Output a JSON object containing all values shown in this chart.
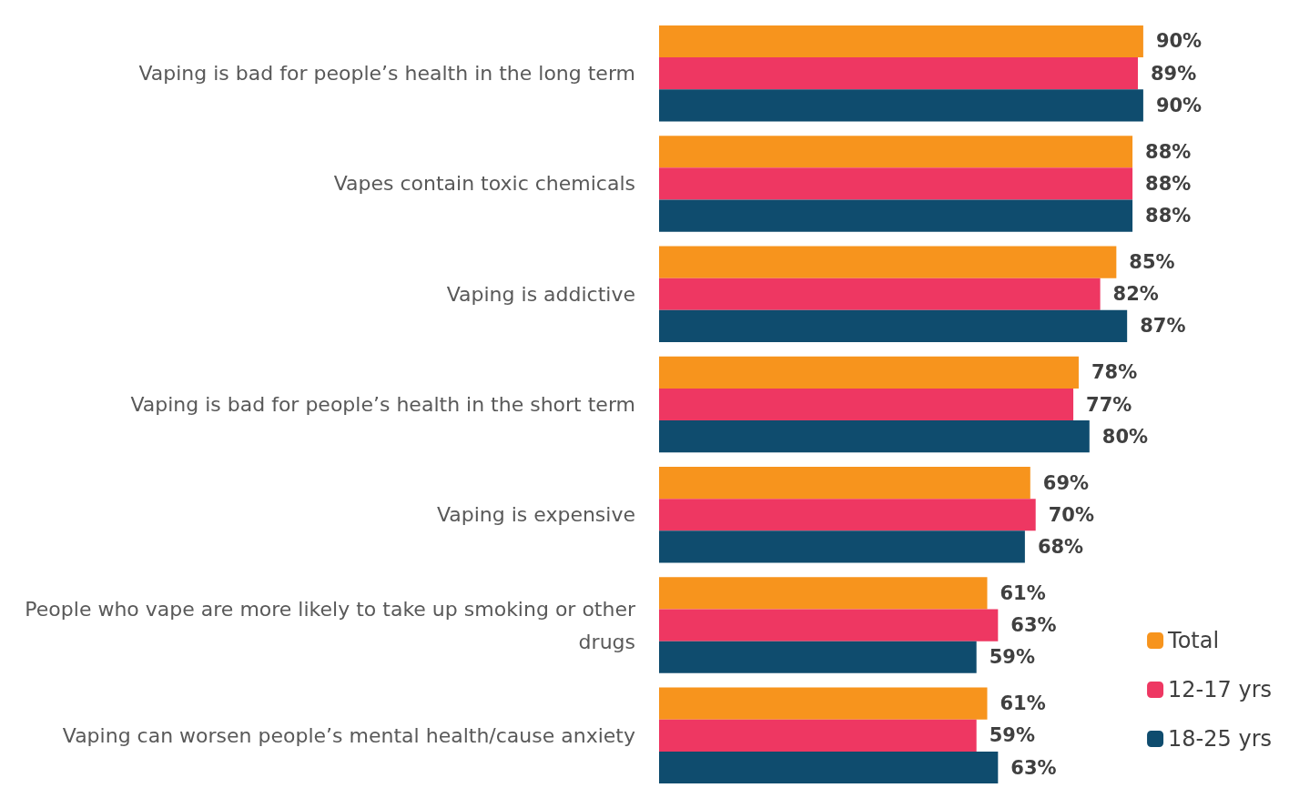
{
  "chart_data": {
    "type": "bar",
    "orientation": "horizontal",
    "categories": [
      "Vaping is bad for people’s health in the long term",
      "Vapes contain toxic chemicals",
      "Vaping is addictive",
      "Vaping is bad for people’s health in the short term",
      "Vaping is expensive",
      "People who vape are more likely to take up smoking or other drugs",
      "Vaping can worsen people’s mental health/cause anxiety"
    ],
    "series": [
      {
        "name": "Total",
        "color": "#f7941d",
        "values": [
          90,
          88,
          85,
          78,
          69,
          61,
          61
        ],
        "value_labels": [
          "90%",
          "88%",
          "85%",
          "78%",
          "69%",
          "61%",
          "61%"
        ]
      },
      {
        "name": "12-17 yrs",
        "color": "#ee3762",
        "values": [
          89,
          88,
          82,
          77,
          70,
          63,
          59
        ],
        "value_labels": [
          "89%",
          "88%",
          "82%",
          "77%",
          "70%",
          "63%",
          "59%"
        ]
      },
      {
        "name": "18-25 yrs",
        "color": "#0f4c6e",
        "values": [
          90,
          88,
          87,
          80,
          68,
          59,
          63
        ],
        "value_labels": [
          "90%",
          "88%",
          "87%",
          "80%",
          "68%",
          "59%",
          "63%"
        ]
      }
    ],
    "legend": "bottom right"
  }
}
